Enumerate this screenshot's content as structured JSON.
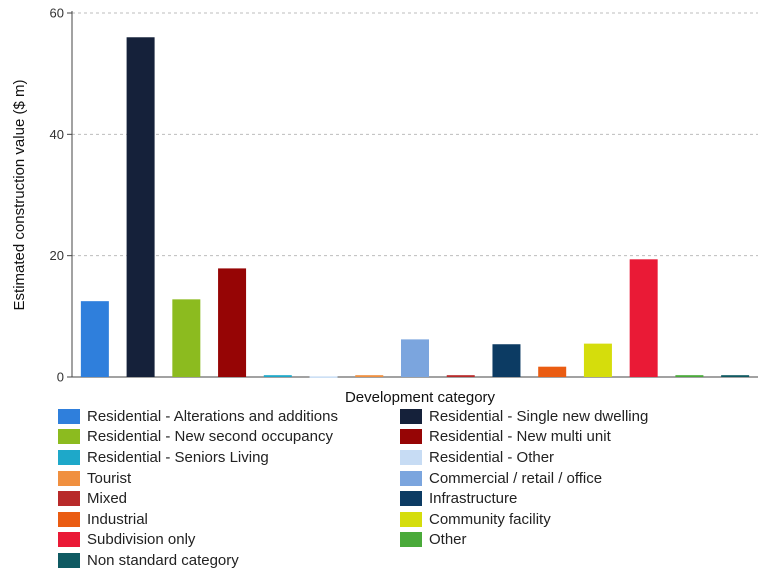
{
  "chart_data": {
    "type": "bar",
    "xlabel": "Development category",
    "ylabel": "Estimated construction value ($ m)",
    "ylim": [
      0,
      60
    ],
    "yticks": [
      0,
      20,
      40,
      60
    ],
    "grid": true,
    "legend_placement": "bottom",
    "categories": [
      "Residential - Alterations and additions",
      "Residential - Single new dwelling",
      "Residential - New second occupancy",
      "Residential - New multi unit",
      "Residential - Seniors Living",
      "Residential - Other",
      "Tourist",
      "Commercial / retail / office",
      "Mixed",
      "Infrastructure",
      "Industrial",
      "Community facility",
      "Subdivision only",
      "Other",
      "Non standard category"
    ],
    "values": [
      12.5,
      56.0,
      12.8,
      17.9,
      0.3,
      0.1,
      0.3,
      6.2,
      0.3,
      5.4,
      1.7,
      5.5,
      19.4,
      0.3,
      0.3
    ],
    "colors": [
      "#2f7fdc",
      "#15213a",
      "#8cbb1f",
      "#960505",
      "#1ea8c9",
      "#c7dcf4",
      "#f09040",
      "#7ba5de",
      "#b82a2a",
      "#0c3b63",
      "#ea5c12",
      "#d5dd0c",
      "#ea1a36",
      "#4aaa3a",
      "#0f5a62"
    ]
  }
}
